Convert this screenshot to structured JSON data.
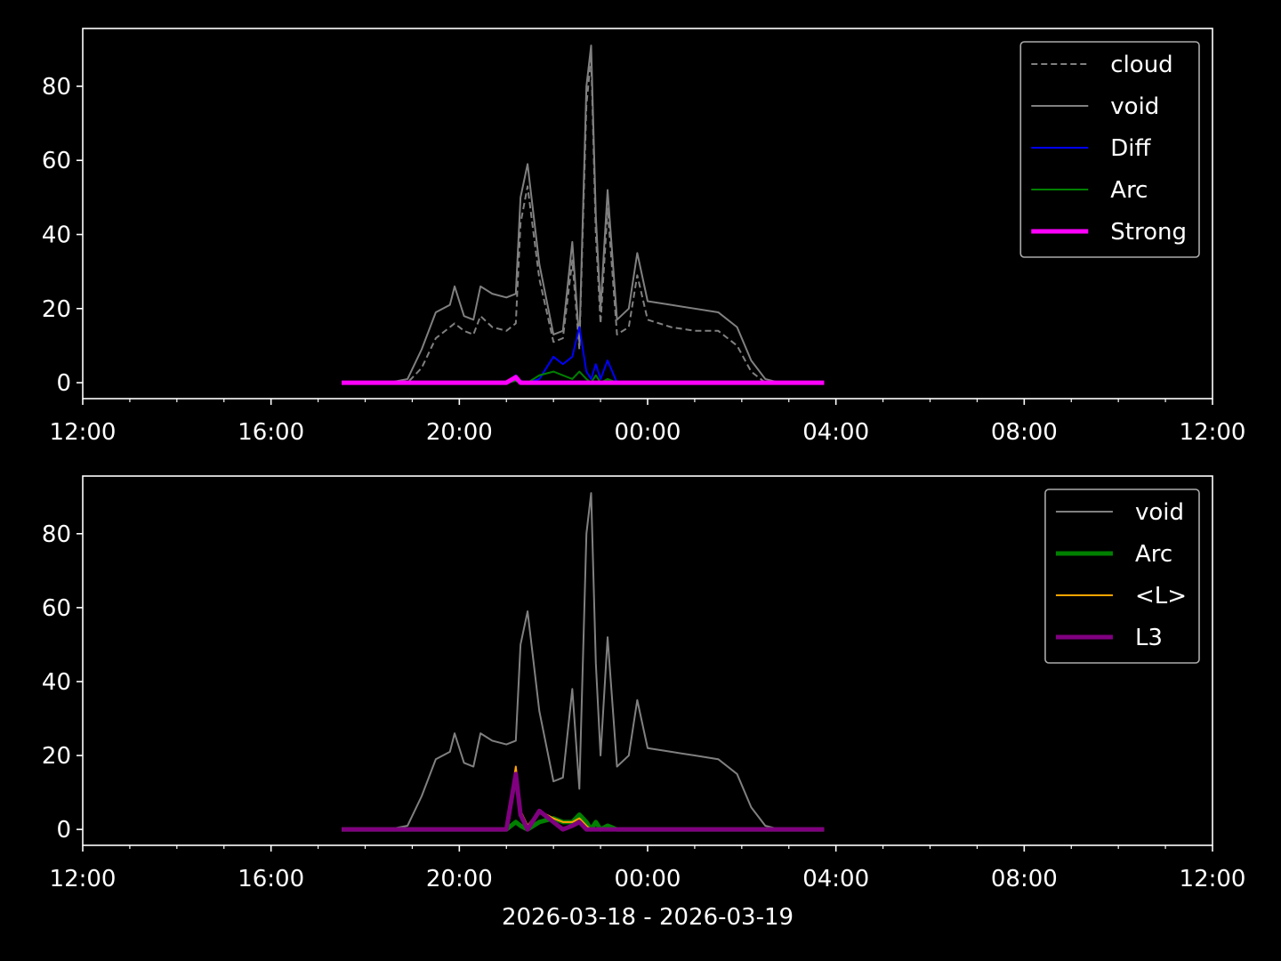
{
  "chart_data": [
    {
      "type": "line",
      "x": [
        17.5,
        18.5,
        18.9,
        19.2,
        19.5,
        19.8,
        19.9,
        20.1,
        20.3,
        20.45,
        20.7,
        21.0,
        21.2,
        21.3,
        21.45,
        21.7,
        22.0,
        22.2,
        22.4,
        22.55,
        22.7,
        22.8,
        22.9,
        23.0,
        23.15,
        23.35,
        23.6,
        23.78,
        24.0,
        24.5,
        25.0,
        25.5,
        25.9,
        26.2,
        26.5,
        26.8,
        27.75
      ],
      "series": [
        {
          "name": "cloud",
          "color": "#808080",
          "linestyle": "dashed",
          "linewidth": 2,
          "values": [
            0,
            0,
            0,
            4,
            12,
            15,
            16,
            14,
            13,
            18,
            15,
            14,
            16,
            43,
            53,
            28,
            11,
            12,
            33,
            9,
            75,
            88,
            40,
            16,
            47,
            13,
            15,
            29,
            17,
            15,
            14,
            14,
            10,
            3,
            0,
            0,
            0
          ]
        },
        {
          "name": "void",
          "color": "#808080",
          "linestyle": "solid",
          "linewidth": 2,
          "values": [
            0,
            0,
            1,
            9,
            19,
            21,
            26,
            18,
            17,
            26,
            24,
            23,
            24,
            50,
            59,
            32,
            13,
            14,
            38,
            11,
            80,
            91,
            45,
            20,
            52,
            17,
            20,
            35,
            22,
            21,
            20,
            19,
            15,
            6,
            1,
            0,
            0
          ]
        },
        {
          "name": "Diff",
          "color": "#0000ff",
          "linestyle": "solid",
          "linewidth": 2,
          "values": [
            0,
            0,
            0,
            0,
            0,
            0,
            0,
            0,
            0,
            0,
            0,
            0,
            2,
            0.5,
            0,
            1,
            7,
            5,
            7,
            15,
            3,
            1,
            5,
            1,
            6,
            0,
            0,
            0,
            0,
            0,
            0,
            0,
            0,
            0,
            0,
            0,
            0
          ]
        },
        {
          "name": "Arc",
          "color": "#008000",
          "linestyle": "solid",
          "linewidth": 2,
          "values": [
            0,
            0,
            0,
            0,
            0,
            0,
            0,
            0,
            0,
            0,
            0,
            0,
            0.5,
            0,
            0,
            2,
            3,
            2,
            1,
            3,
            1,
            0,
            2,
            0,
            1,
            0,
            0,
            0,
            0,
            0,
            0,
            0,
            0,
            0,
            0,
            0,
            0
          ]
        },
        {
          "name": "Strong",
          "color": "#ff00ff",
          "linestyle": "solid",
          "linewidth": 5,
          "values": [
            0,
            0,
            0,
            0,
            0,
            0,
            0,
            0,
            0,
            0,
            0,
            0,
            1.5,
            0,
            0,
            0,
            0,
            0,
            0,
            0,
            0,
            0,
            0,
            0,
            0,
            0,
            0,
            0,
            0,
            0,
            0,
            0,
            0,
            0,
            0,
            0,
            0
          ]
        }
      ],
      "xlim": [
        12,
        36
      ],
      "xticks": [
        {
          "value": 12,
          "label": "12:00"
        },
        {
          "value": 16,
          "label": "16:00"
        },
        {
          "value": 20,
          "label": "20:00"
        },
        {
          "value": 24,
          "label": "00:00"
        },
        {
          "value": 28,
          "label": "04:00"
        },
        {
          "value": 32,
          "label": "08:00"
        },
        {
          "value": 36,
          "label": "12:00"
        }
      ],
      "ylim": [
        -4.3,
        95.6
      ],
      "yticks": [
        0,
        20,
        40,
        60,
        80
      ],
      "legend": "upper right"
    },
    {
      "type": "line",
      "x": [
        17.5,
        18.5,
        18.9,
        19.2,
        19.5,
        19.8,
        19.9,
        20.1,
        20.3,
        20.45,
        20.7,
        21.0,
        21.2,
        21.3,
        21.45,
        21.7,
        22.0,
        22.2,
        22.4,
        22.55,
        22.7,
        22.8,
        22.9,
        23.0,
        23.15,
        23.35,
        23.6,
        23.78,
        24.0,
        24.5,
        25.0,
        25.5,
        25.9,
        26.2,
        26.5,
        26.8,
        27.75
      ],
      "series": [
        {
          "name": "void",
          "color": "#808080",
          "linestyle": "solid",
          "linewidth": 2,
          "values": [
            0,
            0,
            1,
            9,
            19,
            21,
            26,
            18,
            17,
            26,
            24,
            23,
            24,
            50,
            59,
            32,
            13,
            14,
            38,
            11,
            80,
            91,
            45,
            20,
            52,
            17,
            20,
            35,
            22,
            21,
            20,
            19,
            15,
            6,
            1,
            0,
            0
          ]
        },
        {
          "name": "Arc",
          "color": "#008000",
          "linestyle": "solid",
          "linewidth": 5,
          "values": [
            0,
            0,
            0,
            0,
            0,
            0,
            0,
            0,
            0,
            0,
            0,
            0,
            2,
            1,
            0,
            2,
            3,
            2,
            2,
            4,
            2,
            0,
            2,
            0,
            1,
            0,
            0,
            0,
            0,
            0,
            0,
            0,
            0,
            0,
            0,
            0,
            0
          ]
        },
        {
          "name": "<L>",
          "color": "#ffa500",
          "linestyle": "solid",
          "linewidth": 2,
          "values": [
            0,
            0,
            0,
            0,
            0,
            0,
            0,
            0,
            0,
            0,
            0,
            0,
            17,
            5,
            1,
            5,
            3,
            2,
            2,
            3,
            1,
            0,
            0,
            0,
            0,
            0,
            0,
            0,
            0,
            0,
            0,
            0,
            0,
            0,
            0,
            0,
            0
          ]
        },
        {
          "name": "L3",
          "color": "#800080",
          "linestyle": "solid",
          "linewidth": 5,
          "values": [
            0,
            0,
            0,
            0,
            0,
            0,
            0,
            0,
            0,
            0,
            0,
            0,
            15,
            4,
            0,
            5,
            2,
            0,
            1,
            2,
            0,
            0,
            0,
            0,
            0,
            0,
            0,
            0,
            0,
            0,
            0,
            0,
            0,
            0,
            0,
            0,
            0
          ]
        }
      ],
      "xlim": [
        12,
        36
      ],
      "xticks": [
        {
          "value": 12,
          "label": "12:00"
        },
        {
          "value": 16,
          "label": "16:00"
        },
        {
          "value": 20,
          "label": "20:00"
        },
        {
          "value": 24,
          "label": "00:00"
        },
        {
          "value": 28,
          "label": "04:00"
        },
        {
          "value": 32,
          "label": "08:00"
        },
        {
          "value": 36,
          "label": "12:00"
        }
      ],
      "ylim": [
        -4.3,
        95.6
      ],
      "yticks": [
        0,
        20,
        40,
        60,
        80
      ],
      "xlabel": "2026-03-18 - 2026-03-19",
      "legend": "upper right"
    }
  ]
}
